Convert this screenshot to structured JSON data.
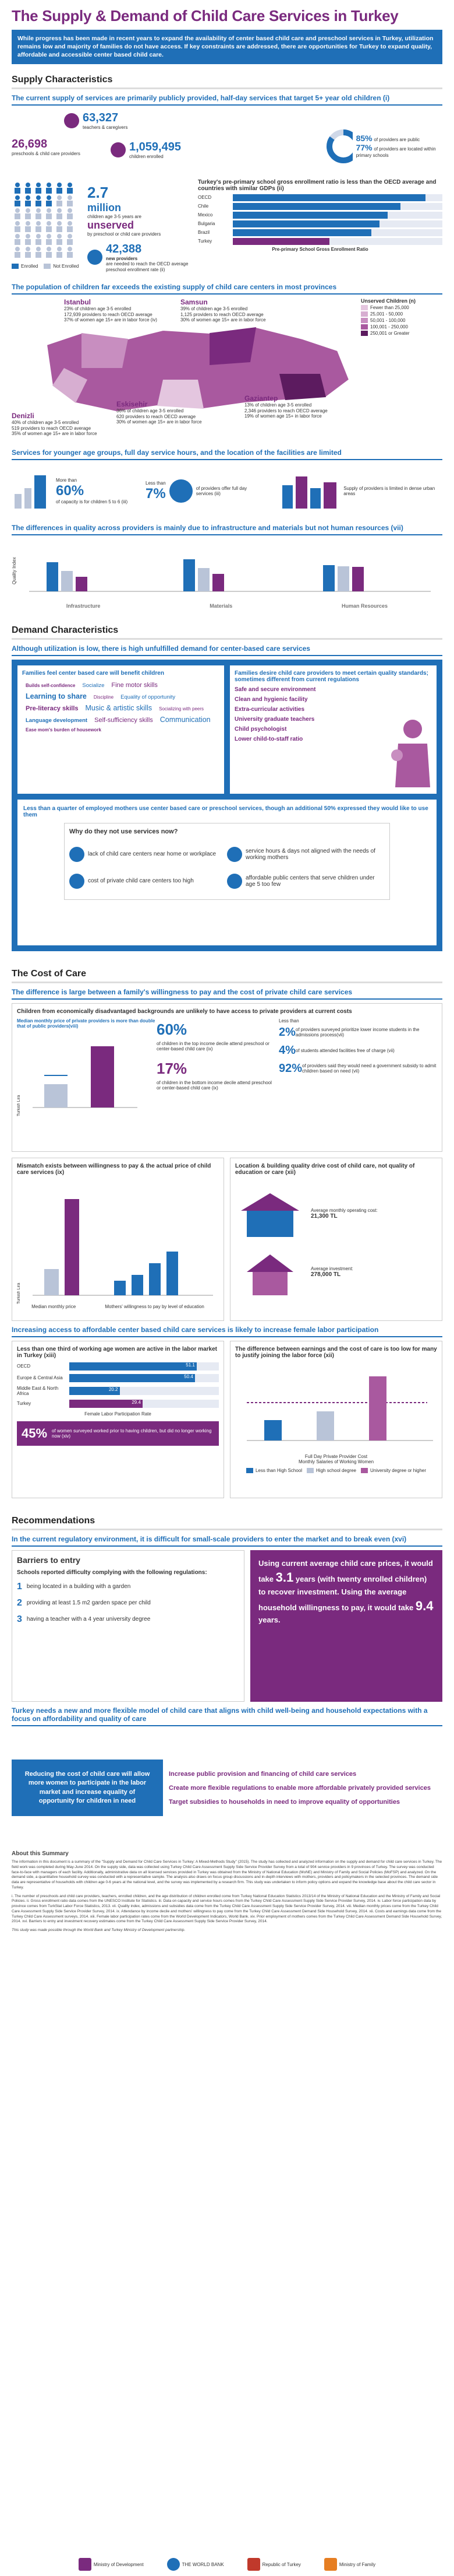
{
  "header": {
    "title": "The Supply & Demand of Child Care Services in Turkey",
    "intro": "While progress has been made in recent years to expand the availability of center based child care and preschool services in Turkey, utilization remains low and majority of families do not have access. If key constraints are addressed, there are opportunities for Turkey to expand quality, affordable and accessible center based child care."
  },
  "supply": {
    "heading": "Supply Characteristics",
    "s1_title": "The current supply of services are primarily publicly provided, half-day services that target 5+ year old children (i)",
    "stats": [
      {
        "num": "63,327",
        "lbl": "teachers & caregivers"
      },
      {
        "num": "26,698",
        "lbl": "preschools & child care providers"
      },
      {
        "num": "1,059,495",
        "lbl": "children enrolled"
      }
    ],
    "public_pct": "85%",
    "public_lbl": "of providers are public",
    "primary_pct": "77%",
    "primary_lbl": "of providers are located within primary schools",
    "unserved_num": "2.7",
    "unserved_unit": "million",
    "unserved_lbl": "children age 3-5 years are",
    "unserved_word": "unserved",
    "unserved_lbl2": "by preschool or child care providers",
    "enrolled_legend": "Enrolled",
    "notenrolled_legend": "Not Enrolled",
    "new_num": "42,388",
    "new_unit": "new providers",
    "new_lbl": "are needed to reach the OECD average preschool enrollment rate (ii)",
    "oecd_title": "Turkey's pre-primary school gross enrollment ratio is less than the OECD average and countries with similar GDPs (ii)",
    "oecd_xlabel": "Pre-primary School Gross Enrollment Ratio",
    "oecd_countries": [
      "OECD",
      "Chile",
      "Mexico",
      "Bulgaria",
      "Brazil",
      "Turkey"
    ],
    "s2_title": "The population of children far exceeds the existing supply of child care centers in most provinces",
    "map_legend_title": "Unserved Children (n)",
    "map_legend": [
      "Fewer than 25,000",
      "25,001 - 50,000",
      "50,001 - 100,000",
      "100,001 - 250,000",
      "250,001 or Greater"
    ],
    "cities": [
      {
        "name": "Istanbul",
        "l1": "23% of children age 3-5 enrolled",
        "l2": "172,939 providers to reach OECD average",
        "l3": "37% of women age 15+ are in labor force (iv)"
      },
      {
        "name": "Samsun",
        "l1": "39% of children age 3-5 enrolled",
        "l2": "1,125 providers to reach OECD average",
        "l3": "30% of women age 15+ are in labor force"
      },
      {
        "name": "Eskisehir",
        "l1": "36% of children age 3-5 enrolled",
        "l2": "620 providers to reach OECD average",
        "l3": "30% of women age 15+ are in labor force"
      },
      {
        "name": "Gaziantep",
        "l1": "13% of children age 3-5 enrolled",
        "l2": "2,346 providers to reach OECD average",
        "l3": "19% of women age 15+ in labor force"
      },
      {
        "name": "Denizli",
        "l1": "40% of children age 3-5 enrolled",
        "l2": "519 providers to reach OECD average",
        "l3": "35% of women age 15+ are in labor force"
      }
    ],
    "s3_title": "Services for younger age groups, full day service hours, and the location of the facilities are limited",
    "s3_a_pre": "More than",
    "s3_a_num": "60%",
    "s3_a_lbl": "of capacity is for children 5 to 6 (iii)",
    "s3_b_pre": "Less than",
    "s3_b_num": "7%",
    "s3_b_lbl": "of providers offer full day services (iii)",
    "s3_c_lbl": "Supply of providers is limited in dense urban areas",
    "s4_title": "The differences in quality across providers is mainly due to infrastructure and materials but not human resources (vii)",
    "s4_ylabel": "Quality Index",
    "s4_groups": [
      "Infrastructure",
      "Materials",
      "Human Resources"
    ]
  },
  "demand": {
    "heading": "Demand Characteristics",
    "d1_title": "Although utilization is low, there is high unfulfilled demand for center-based care services",
    "left_box_title": "Families feel center based care will benefit children",
    "words": [
      "Builds self-confidence",
      "Socialize",
      "Fine motor skills",
      "Learning to share",
      "Discipline",
      "Equality of opportunity",
      "Pre-literacy skills",
      "Music & artistic skills",
      "Socializing with peers",
      "Language development",
      "Self-sufficiency skills",
      "Communication",
      "Ease mom's burden of housework"
    ],
    "right_box_title": "Families desire child care providers to meet certain quality standards; sometimes different from current regulations",
    "right_items": [
      "Safe and secure environment",
      "Clean and hygienic facility",
      "Extra-curricular activities",
      "University graduate teachers",
      "Child psychologist",
      "Lower child-to-staff ratio"
    ],
    "d2_title": "Less than a quarter of employed mothers use center based care or preschool services, though an additional 50% expressed they would like to use them",
    "why_title": "Why do they not use services now?",
    "reasons": [
      "lack of child care centers near home or workplace",
      "service hours & days not aligned with the needs of working mothers",
      "cost of private child care centers too high",
      "affordable public centers that serve children under age 5 too few"
    ]
  },
  "cost": {
    "heading": "The Cost of Care",
    "c1_title": "The difference is large between a family's willingness to pay and the cost of private child care services",
    "c1_sub": "Children from economically disadvantaged backgrounds are unlikely to have access to private providers at current costs",
    "median_title": "Median monthly price of private providers is more than double that of public providers(viii)",
    "median_ylabel": "Turkish Lira",
    "pct60": "60%",
    "pct60_lbl": "of children in the top income decile attend preschool or center-based child care (ix)",
    "pct17": "17%",
    "pct17_lbl": "of children in the bottom income decile attend preschool or center-based child care (ix)",
    "pct2_pre": "Less than",
    "pct2": "2%",
    "pct2_lbl": "of providers surveyed prioritize lower income students in the admissions process(vii)",
    "pct4": "4%",
    "pct4_lbl": "of students attended facilities free of charge (vii)",
    "pct92": "92%",
    "pct92_lbl": "of providers said they would need a government subsidy to admit children based on need (vii)",
    "mismatch_title": "Mismatch exists between willingness to pay & the actual price of child care services (ix)",
    "mismatch_ylabel": "Turkish Lira",
    "mismatch_median": "Median monthly price",
    "mismatch_will": "Mothers' willingness to pay by level of education",
    "location_title": "Location & building quality drive cost of child care, not quality of education or care (xii)",
    "avg_op": "Average monthly operating cost:",
    "avg_op_val": "21,300 TL",
    "avg_inv": "Average investment:",
    "avg_inv_val": "278,000 TL",
    "c2_title": "Increasing access to affordable center based child care services is likely to increase female labor participation",
    "lfp_title": "Less than one third of working age women are active in the labor market in Turkey (xiii)",
    "lfp_xlabel": "Female Labor Participation Rate",
    "lfp_regions": [
      "OECD",
      "Europe & Central Asia",
      "Middle East & North Africa",
      "Turkey"
    ],
    "lfp_values": [
      "51.1",
      "50.4",
      "20.2",
      "29.4"
    ],
    "lfp_banner_num": "45%",
    "lfp_banner": "of women surveyed worked prior to having children, but did no longer working now (xiv)",
    "diff_title": "The difference between earnings and the cost of care is too low for many to justify joining the labor force (xii)",
    "diff_xlabel": "Monthly Salaries of Working Women",
    "diff_legend": [
      "Less than High School",
      "High school degree",
      "University degree or higher"
    ],
    "diff_line": "Full Day Private Provider Cost"
  },
  "recs": {
    "heading": "Recommendations",
    "r1_title": "In the current regulatory environment, it is difficult for small-scale providers to enter the market and to break even (xvi)",
    "barriers_title": "Barriers to entry",
    "barriers_sub": "Schools reported difficulty complying with the following regulations:",
    "barriers": [
      "being located in a building with a garden",
      "providing at least 1.5 m2 garden space per child",
      "having a teacher with a 4 year university degree"
    ],
    "years_pre": "Using current average child care prices, it would take",
    "years_a": "3.1",
    "years_mid": "years (with twenty enrolled children) to recover investment. Using the average household willingness to pay, it would take",
    "years_b": "9.4",
    "years_post": "years.",
    "r2_title": "Turkey needs a new and more flexible model of child care that aligns with child well-being and household expectations with a focus on affordability and quality of care",
    "reduce": "Reducing the cost of child care will allow more women to participate in the labor market and increase equality of opportunity for children in need",
    "actions": [
      "Increase public provision and financing of child care services",
      "Create more flexible regulations to enable more affordable privately provided services",
      "Target subsidies to households in need to improve equality of opportunities"
    ]
  },
  "notes": {
    "title": "About this Summary",
    "para": "The information in this document is a summary of the \"Supply and Demand for Child Care Services in Turkey: A Mixed-Methods Study\" (2015). The study has collected and analyzed information on the supply and demand for child care services in Turkey. The field work was completed during May-June 2014. On the supply side, data was collected using Turkey Child Care Assessment Supply Side Service Provider Survey from a total of 904 service providers in 9 provinces of Turkey. The survey was conducted face-to-face with managers of each facility. Additionally, administrative data on all licensed services provided in Turkey was obtained from the Ministry of National Education (MoNE) and Ministry of Family and Social Policies (MoFSP) and analyzed. On the demand side, a quantitative household survey was conducted with a representative sample. The analysis also draws on focus group discussions and in-depth interviews with mothers, providers and policymakers in the selected provinces. The demand side data are representative of households with children age 0-6 years at the national level, and the survey was implemented by a research firm. This study was undertaken to inform policy options and expand the knowledge base about the child care sector in Turkey.",
    "refs": "i. The number of preschools and child care providers, teachers, enrolled children, and the age distribution of children enrolled come from Turkey National Education Statistics 2013/14 of the Ministry of National Education and the Ministry of Family and Social Policies. ii. Gross enrollment ratio data comes from the UNESCO Institute for Statistics. iii. Data on capacity and service hours comes from the Turkey Child Care Assessment Supply Side Service Provider Survey, 2014. iv. Labor force participation data by province comes from TurkStat Labor Force Statistics, 2013. vii. Quality index, admissions and subsidies data come from the Turkey Child Care Assessment Supply Side Service Provider Survey, 2014. viii. Median monthly prices come from the Turkey Child Care Assessment Supply Side Service Provider Survey, 2014. ix. Attendance by income decile and mothers' willingness to pay come from the Turkey Child Care Assessment Demand Side Household Survey, 2014. xii. Costs and earnings data come from the Turkey Child Care Assessment surveys, 2014. xiii. Female labor participation rates come from the World Development Indicators, World Bank. xiv. Prior employment of mothers comes from the Turkey Child Care Assessment Demand Side Household Survey, 2014. xvi. Barriers to entry and investment recovery estimates come from the Turkey Child Care Assessment Supply Side Service Provider Survey, 2014.",
    "credit": "This study was made possible through the World Bank and Turkey Ministry of Development partnership."
  },
  "footer": {
    "logos": [
      "Ministry of Development",
      "THE WORLD BANK",
      "Republic of Turkey",
      "Ministry of Family"
    ]
  }
}
